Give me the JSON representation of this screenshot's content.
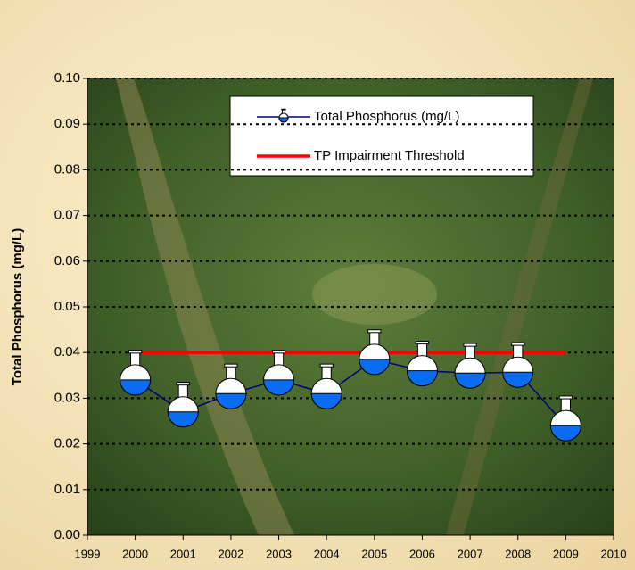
{
  "chart_data": {
    "type": "line",
    "y_label": "Total Phosphorus (mg/L)",
    "x": [
      2000,
      2001,
      2002,
      2003,
      2004,
      2005,
      2006,
      2007,
      2008,
      2009
    ],
    "series": [
      {
        "name": "Total Phosphorus (mg/L)",
        "color": "#000080",
        "marker": "flask",
        "values": [
          0.034,
          0.027,
          0.031,
          0.034,
          0.031,
          0.0385,
          0.036,
          0.0355,
          0.0357,
          0.024
        ]
      },
      {
        "name": "TP Impairment Threshold",
        "color": "#ff0000",
        "values": [
          0.04,
          0.04,
          0.04,
          0.04,
          0.04,
          0.04,
          0.04,
          0.04,
          0.04,
          0.04
        ]
      }
    ],
    "xlim": [
      1999,
      2010
    ],
    "xticks": [
      1999,
      2000,
      2001,
      2002,
      2003,
      2004,
      2005,
      2006,
      2007,
      2008,
      2009,
      2010
    ],
    "ylim": [
      0,
      0.1
    ],
    "yticks": [
      {
        "value": 0,
        "label": "0.00"
      },
      {
        "value": 0.01,
        "label": "0.01"
      },
      {
        "value": 0.02,
        "label": "0.02"
      },
      {
        "value": 0.03,
        "label": "0.03"
      },
      {
        "value": 0.04,
        "label": "0.04"
      },
      {
        "value": 0.05,
        "label": "0.05"
      },
      {
        "value": 0.06,
        "label": "0.06"
      },
      {
        "value": 0.07,
        "label": "0.07"
      },
      {
        "value": 0.08,
        "label": "0.08"
      },
      {
        "value": 0.09,
        "label": "0.09"
      },
      {
        "value": 0.1,
        "label": "0.10"
      }
    ],
    "grid": true,
    "legend": "top-right"
  }
}
